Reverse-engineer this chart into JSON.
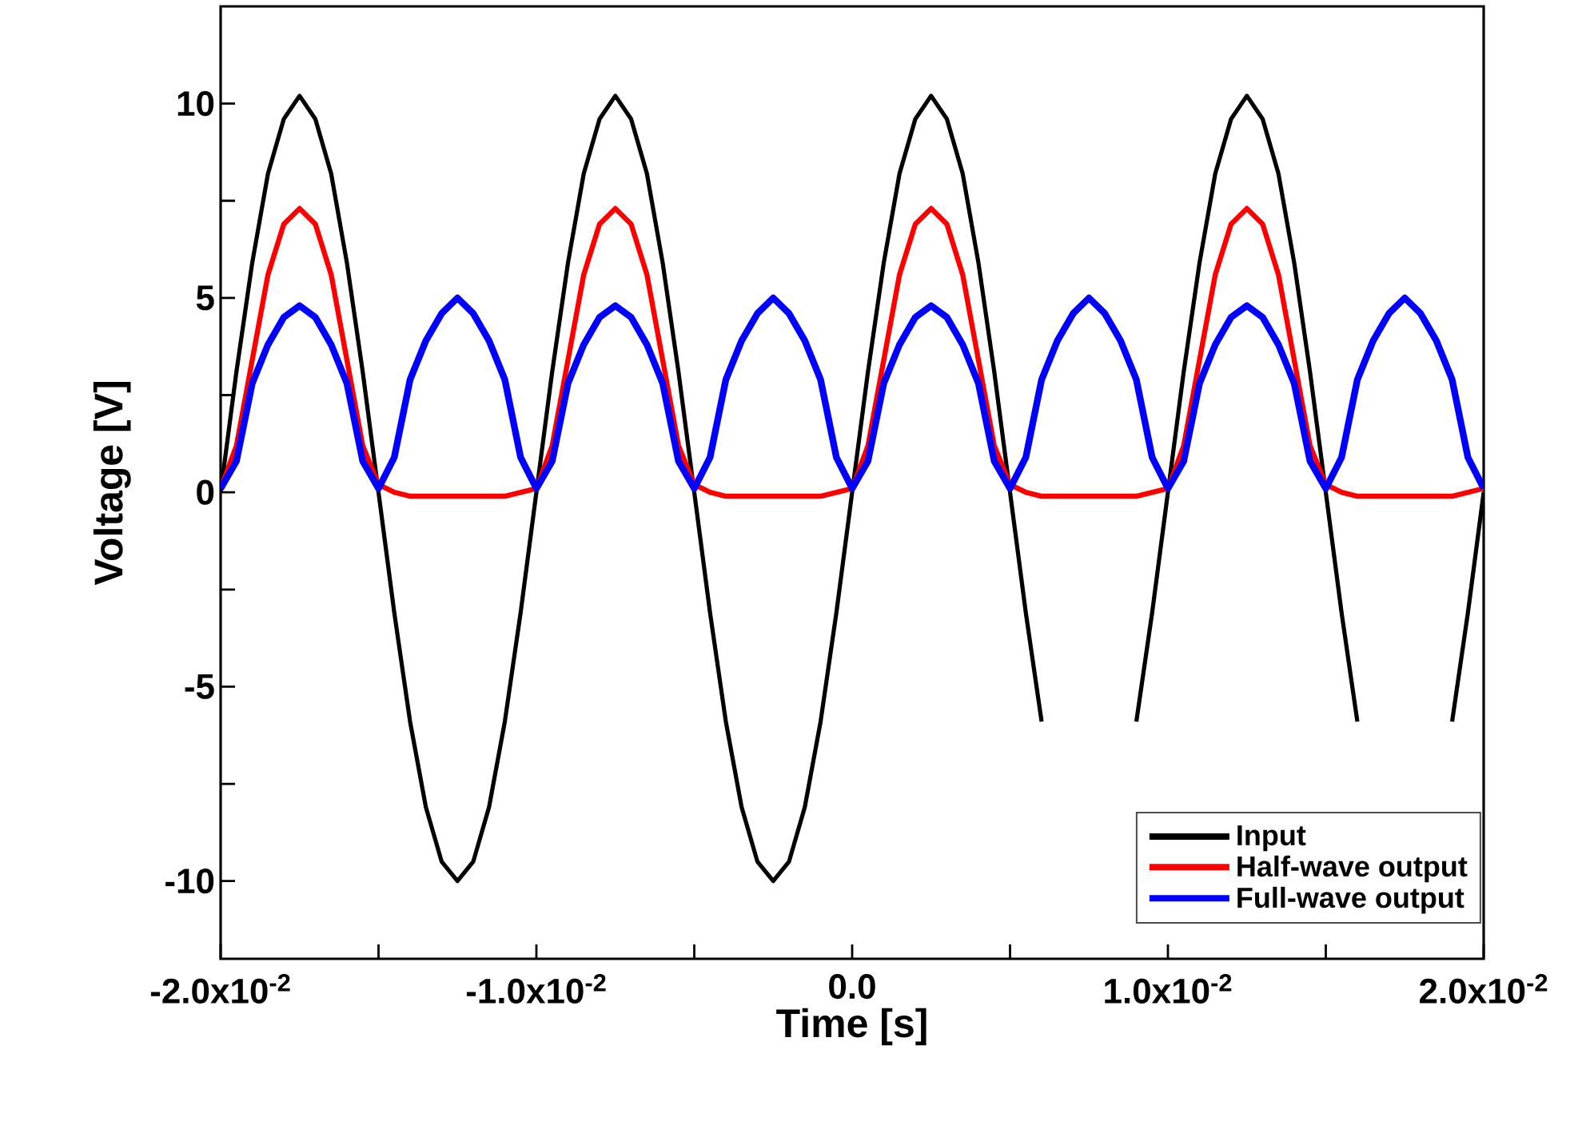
{
  "chart_data": {
    "type": "line",
    "xlabel": "Time [s]",
    "ylabel": "Voltage [V]",
    "x": [
      -0.02,
      -0.0195,
      -0.019,
      -0.0185,
      -0.018,
      -0.0175,
      -0.017,
      -0.0165,
      -0.016,
      -0.0155,
      -0.015,
      -0.0145,
      -0.014,
      -0.0135,
      -0.013,
      -0.0125,
      -0.012,
      -0.0115,
      -0.011,
      -0.0105,
      -0.01,
      -0.0095,
      -0.009,
      -0.0085,
      -0.008,
      -0.0075,
      -0.007,
      -0.0065,
      -0.006,
      -0.0055,
      -0.005,
      -0.0045,
      -0.004,
      -0.0035,
      -0.003,
      -0.0025,
      -0.002,
      -0.0015,
      -0.001,
      -0.0005,
      0,
      0.0005,
      0.001,
      0.0015,
      0.002,
      0.0025,
      0.003,
      0.0035,
      0.004,
      0.0045,
      0.005,
      0.0055,
      0.006,
      0.0065,
      0.007,
      0.0075,
      0.008,
      0.0085,
      0.009,
      0.0095,
      0.01,
      0.0105,
      0.011,
      0.0115,
      0.012,
      0.0125,
      0.013,
      0.0135,
      0.014,
      0.0145,
      0.015,
      0.0155,
      0.016,
      0.0165,
      0.017,
      0.0175,
      0.018,
      0.0185,
      0.019,
      0.0195,
      0.02
    ],
    "series": [
      {
        "name": "Input",
        "color": "#000000",
        "values": [
          0,
          3.1,
          5.9,
          8.2,
          9.6,
          10.2,
          9.6,
          8.2,
          5.9,
          3.1,
          0,
          -3.1,
          -5.9,
          -8.1,
          -9.5,
          -10,
          -9.5,
          -8.1,
          -5.9,
          -3.1,
          0,
          3.1,
          5.9,
          8.2,
          9.6,
          10.2,
          9.6,
          8.2,
          5.9,
          3.1,
          0,
          -3.1,
          -5.9,
          -8.1,
          -9.5,
          -10,
          -9.5,
          -8.1,
          -5.9,
          -3.1,
          0,
          3.1,
          5.9,
          8.2,
          9.6,
          10.2,
          9.6,
          8.2,
          5.9,
          3.1,
          0,
          -3.1,
          -5.9,
          null,
          null,
          null,
          null,
          null,
          -5.9,
          -3.1,
          0,
          3.1,
          5.9,
          8.2,
          9.6,
          10.2,
          9.6,
          8.2,
          5.9,
          3.1,
          0,
          -3.1,
          -5.9,
          null,
          null,
          null,
          null,
          null,
          -5.9,
          -3.1,
          0
        ]
      },
      {
        "name": "Half-wave output",
        "color": "#ff0000",
        "values": [
          0.1,
          1.2,
          3.4,
          5.6,
          6.9,
          7.3,
          6.9,
          5.6,
          3.4,
          1.2,
          0.2,
          0,
          -0.1,
          -0.1,
          -0.1,
          -0.1,
          -0.1,
          -0.1,
          -0.1,
          0,
          0.1,
          1.2,
          3.4,
          5.6,
          6.9,
          7.3,
          6.9,
          5.6,
          3.4,
          1.2,
          0.2,
          0,
          -0.1,
          -0.1,
          -0.1,
          -0.1,
          -0.1,
          -0.1,
          -0.1,
          0,
          0.1,
          1.2,
          3.4,
          5.6,
          6.9,
          7.3,
          6.9,
          5.6,
          3.4,
          1.2,
          0.2,
          0,
          -0.1,
          -0.1,
          -0.1,
          -0.1,
          -0.1,
          -0.1,
          -0.1,
          0,
          0.1,
          1.2,
          3.4,
          5.6,
          6.9,
          7.3,
          6.9,
          5.6,
          3.4,
          1.2,
          0.2,
          0,
          -0.1,
          -0.1,
          -0.1,
          -0.1,
          -0.1,
          -0.1,
          -0.1,
          0,
          0.1
        ]
      },
      {
        "name": "Full-wave output",
        "color": "#0000ff",
        "values": [
          0.1,
          0.8,
          2.8,
          3.8,
          4.5,
          4.8,
          4.5,
          3.8,
          2.8,
          0.8,
          0.1,
          0.9,
          2.9,
          3.9,
          4.6,
          5.0,
          4.6,
          3.9,
          2.9,
          0.9,
          0.1,
          0.8,
          2.8,
          3.8,
          4.5,
          4.8,
          4.5,
          3.8,
          2.8,
          0.8,
          0.1,
          0.9,
          2.9,
          3.9,
          4.6,
          5.0,
          4.6,
          3.9,
          2.9,
          0.9,
          0.1,
          0.8,
          2.8,
          3.8,
          4.5,
          4.8,
          4.5,
          3.8,
          2.8,
          0.8,
          0.1,
          0.9,
          2.9,
          3.9,
          4.6,
          5.0,
          4.6,
          3.9,
          2.9,
          0.9,
          0.1,
          0.8,
          2.8,
          3.8,
          4.5,
          4.8,
          4.5,
          3.8,
          2.8,
          0.8,
          0.1,
          0.9,
          2.9,
          3.9,
          4.6,
          5.0,
          4.6,
          3.9,
          2.9,
          0.9,
          0.1
        ]
      }
    ],
    "xlim": [
      -0.02,
      0.02
    ],
    "xticks": [
      {
        "value": -0.02,
        "label": "-2.0x10$^{-2}$"
      },
      {
        "value": -0.015,
        "label": null
      },
      {
        "value": -0.01,
        "label": "-1.0x10$^{-2}$"
      },
      {
        "value": -0.005,
        "label": null
      },
      {
        "value": 0,
        "label": "0.0"
      },
      {
        "value": 0.005,
        "label": null
      },
      {
        "value": 0.01,
        "label": "1.0x10$^{-2}$"
      },
      {
        "value": 0.015,
        "label": null
      },
      {
        "value": 0.02,
        "label": "2.0x10$^{-2}$"
      }
    ],
    "ylim": [
      -12,
      12.5
    ],
    "yticks": [
      -10,
      {
        "value": -7.5,
        "label": null
      },
      -5,
      {
        "value": -2.5,
        "label": null
      },
      0,
      {
        "value": 2.5,
        "label": null
      },
      5,
      {
        "value": 7.5,
        "label": null
      },
      10
    ],
    "grid": false,
    "legend": "bottom right",
    "marker": "none",
    "line_style": "solid"
  }
}
